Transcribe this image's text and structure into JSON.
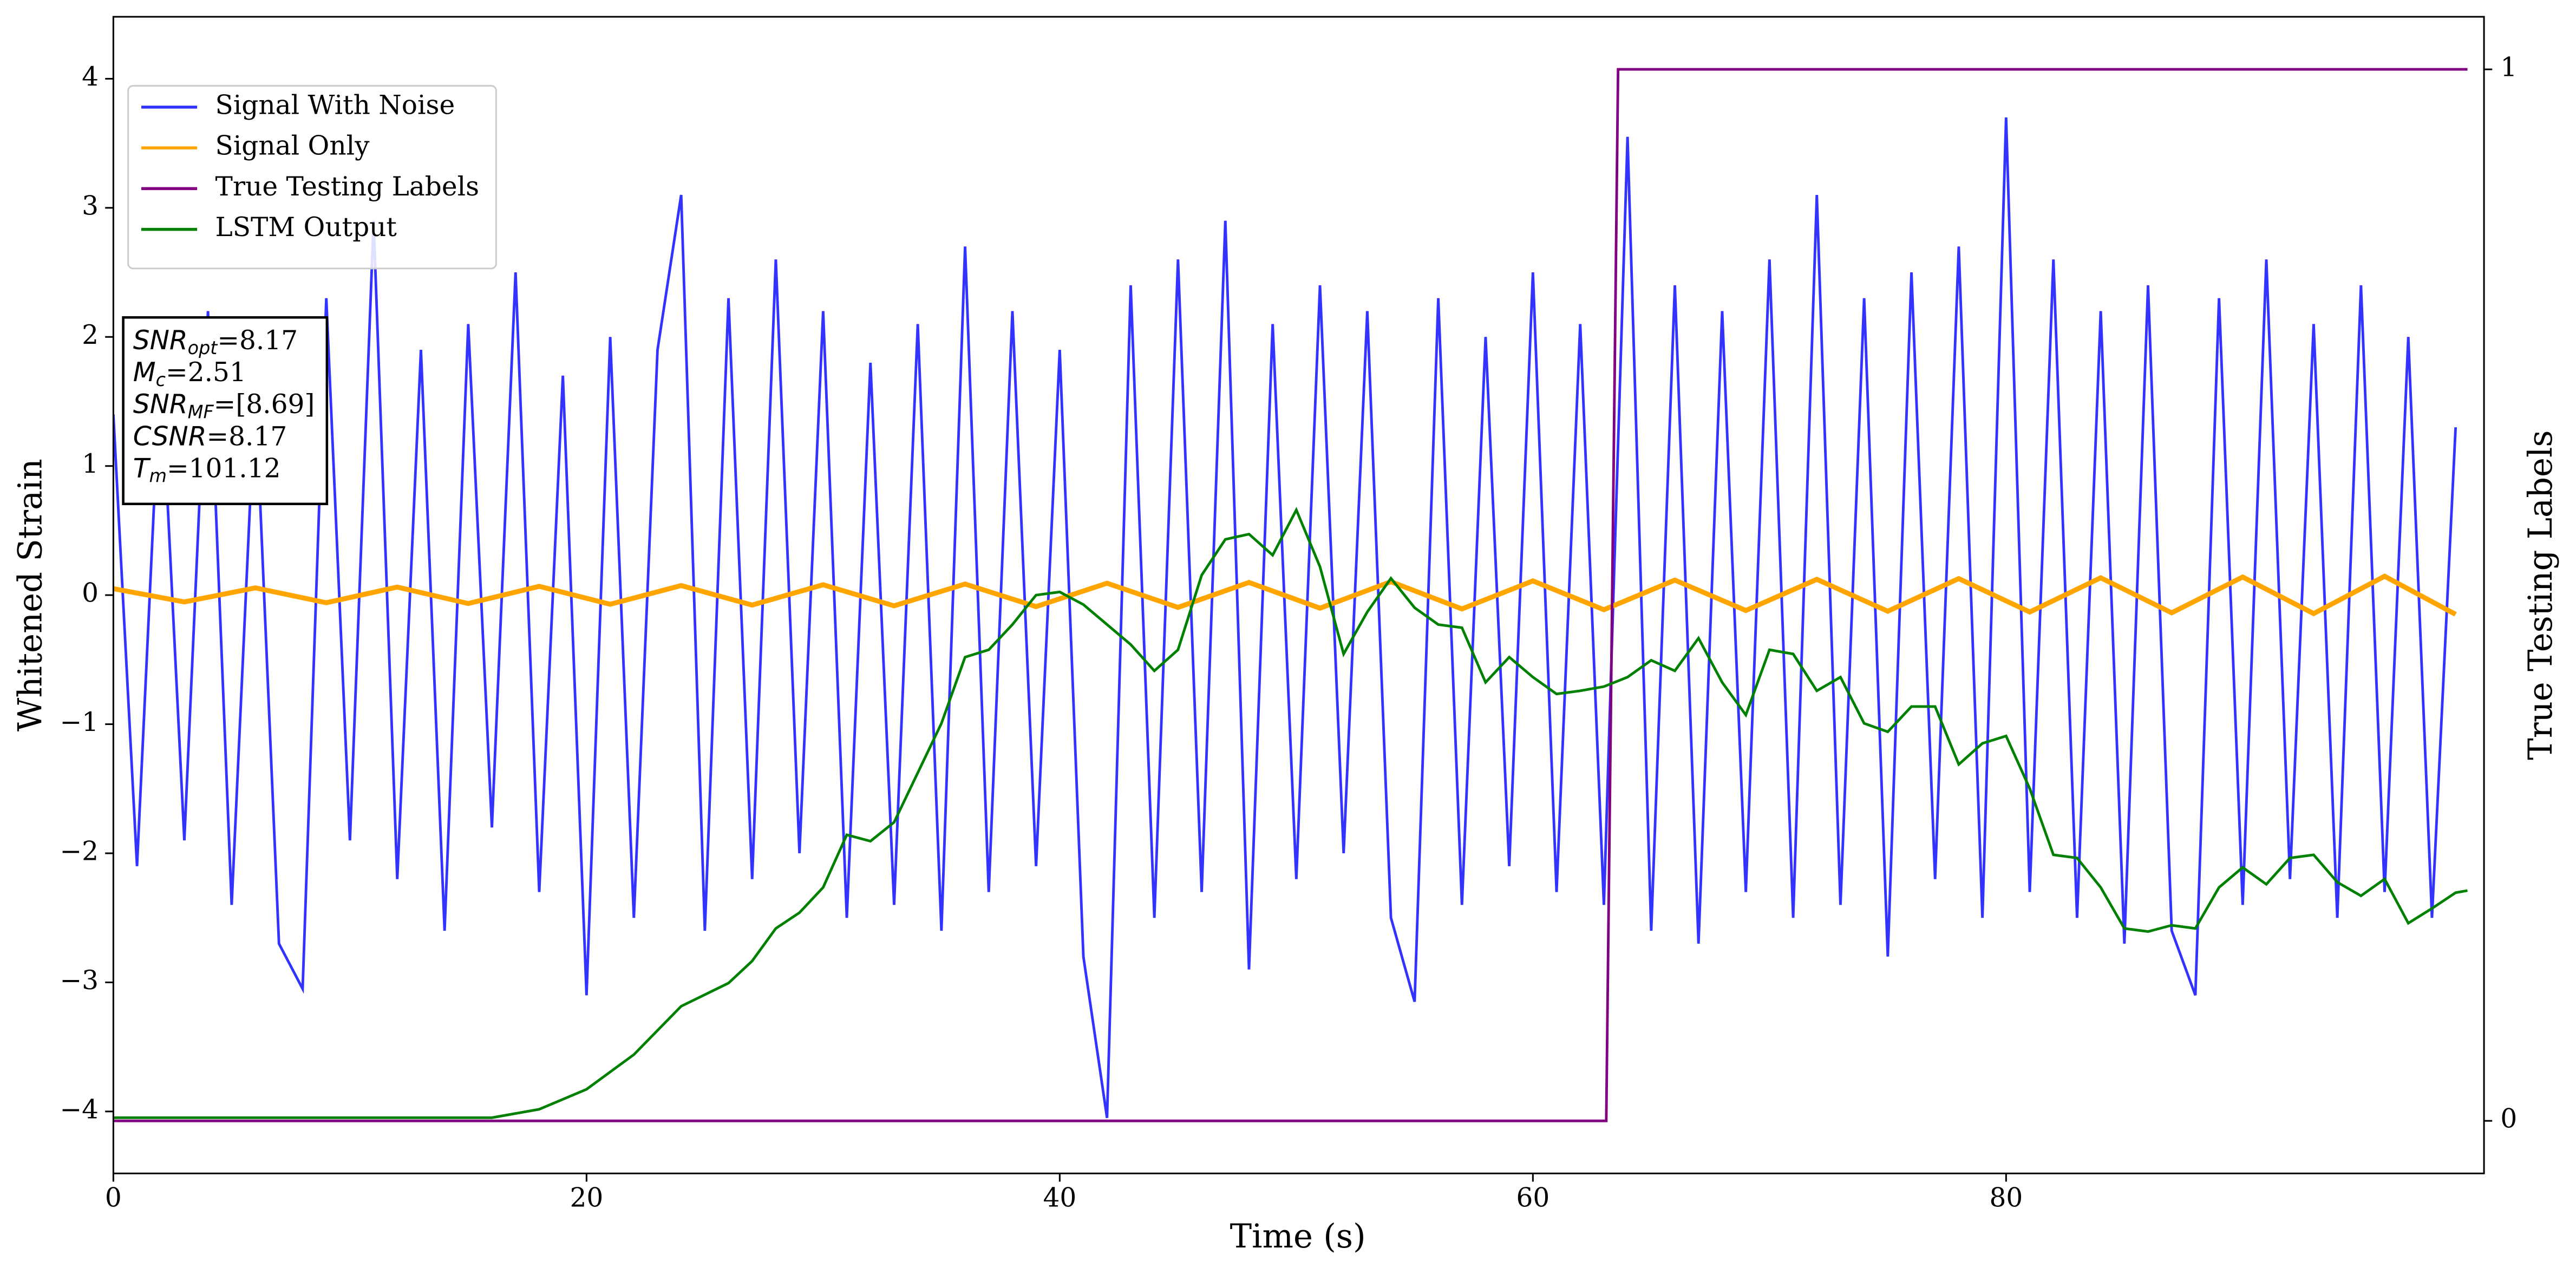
{
  "chart_data": {
    "type": "line",
    "xlabel": "Time (s)",
    "ylabel": "Whitened Strain",
    "y2label": "True Testing Labels",
    "xlim": [
      0,
      100.2
    ],
    "ylim": [
      -4.48,
      4.48
    ],
    "y2lim": [
      -0.05,
      1.05
    ],
    "xticks": [
      0,
      20,
      40,
      60,
      80
    ],
    "yticks": [
      {
        "value": -4,
        "label": "−4"
      },
      {
        "value": -3,
        "label": "−3"
      },
      {
        "value": -2,
        "label": "−2"
      },
      {
        "value": -1,
        "label": "−1"
      },
      0,
      1,
      2,
      3,
      4
    ],
    "y2ticks": [
      0,
      1
    ],
    "legend": "upper left",
    "annotation": [
      [
        "SNR",
        "opt",
        "=8.17"
      ],
      [
        "M",
        "c",
        "=2.51"
      ],
      [
        "SNR",
        "MF",
        "=[8.69]"
      ],
      [
        "CSNR",
        "",
        "=8.17"
      ],
      [
        "T",
        "m",
        "=101.12"
      ]
    ],
    "series": [
      {
        "name": "Signal With Noise",
        "color": "#3333ff",
        "x": [
          0,
          1,
          2,
          3,
          4,
          5,
          6,
          7,
          8,
          9,
          10,
          11,
          12,
          13,
          14,
          15,
          16,
          17,
          18,
          19,
          20,
          21,
          22,
          23,
          24,
          25,
          26,
          27,
          28,
          29,
          30,
          31,
          32,
          33,
          34,
          35,
          36,
          37,
          38,
          39,
          40,
          41,
          42,
          43,
          44,
          45,
          46,
          47,
          48,
          49,
          50,
          51,
          52,
          53,
          54,
          55,
          56,
          57,
          58,
          59,
          60,
          61,
          62,
          63,
          64,
          65,
          66,
          67,
          68,
          69,
          70,
          71,
          72,
          73,
          74,
          75,
          76,
          77,
          78,
          79,
          80,
          81,
          82,
          83,
          84,
          85,
          86,
          87,
          88,
          89,
          90,
          91,
          92,
          93,
          94,
          95,
          96,
          97,
          98,
          99
        ],
        "values": [
          1.4,
          -2.1,
          1.8,
          -1.9,
          2.2,
          -2.4,
          1.6,
          -2.7,
          -3.05,
          2.3,
          -1.9,
          2.9,
          -2.2,
          1.9,
          -2.6,
          2.1,
          -1.8,
          2.5,
          -2.3,
          1.7,
          -3.1,
          2.0,
          -2.5,
          1.9,
          3.1,
          -2.6,
          2.3,
          -2.2,
          2.6,
          -2.0,
          2.2,
          -2.5,
          1.8,
          -2.4,
          2.1,
          -2.6,
          2.7,
          -2.3,
          2.2,
          -2.1,
          1.9,
          -2.8,
          -4.05,
          2.4,
          -2.5,
          2.6,
          -2.3,
          2.9,
          -2.9,
          2.1,
          -2.2,
          2.4,
          -2.0,
          2.2,
          -2.5,
          -3.15,
          2.3,
          -2.4,
          2.0,
          -2.1,
          2.5,
          -2.3,
          2.1,
          -2.4,
          3.55,
          -2.6,
          2.4,
          -2.7,
          2.2,
          -2.3,
          2.6,
          -2.5,
          3.1,
          -2.4,
          2.3,
          -2.8,
          2.5,
          -2.2,
          2.7,
          -2.5,
          3.7,
          -2.3,
          2.6,
          -2.5,
          2.2,
          -2.7,
          2.4,
          -2.6,
          -3.1,
          2.3,
          -2.4,
          2.6,
          -2.2,
          2.1,
          -2.5,
          2.4,
          -2.3,
          2.0,
          -2.5,
          1.3
        ]
      },
      {
        "name": "Signal Only",
        "color": "#ffa500",
        "x": [
          0,
          3,
          6,
          9,
          12,
          15,
          18,
          21,
          24,
          27,
          30,
          33,
          36,
          39,
          42,
          45,
          48,
          51,
          54,
          57,
          60,
          63,
          66,
          69,
          72,
          75,
          78,
          81,
          84,
          87,
          90,
          93,
          96,
          99
        ],
        "values": [
          0.05,
          -0.053,
          0.056,
          -0.059,
          0.062,
          -0.065,
          0.068,
          -0.071,
          0.074,
          -0.077,
          0.08,
          -0.083,
          0.086,
          -0.089,
          0.092,
          -0.095,
          0.098,
          -0.101,
          0.104,
          -0.107,
          0.11,
          -0.113,
          0.116,
          -0.119,
          0.122,
          -0.125,
          0.128,
          -0.131,
          0.134,
          -0.137,
          0.14,
          -0.143,
          0.146,
          -0.149
        ]
      },
      {
        "name": "True Testing Labels",
        "color": "#800080",
        "axis": "y2",
        "x": [
          0,
          63.1,
          63.6,
          99.5
        ],
        "values": [
          0,
          0,
          1,
          1
        ]
      },
      {
        "name": "LSTM Output",
        "color": "#008000",
        "axis": "y2",
        "x": [
          0,
          16,
          18,
          20,
          22,
          24,
          26,
          27,
          28,
          29,
          30,
          31,
          32,
          33,
          34,
          35,
          36,
          37,
          38,
          39,
          40,
          41,
          42,
          43,
          44,
          45,
          46,
          47,
          48,
          49,
          50,
          51,
          52,
          53,
          54,
          55,
          56,
          57,
          58,
          59,
          60,
          61,
          62,
          63,
          64,
          65,
          66,
          67,
          68,
          69,
          70,
          71,
          72,
          73,
          74,
          75,
          76,
          77,
          78,
          79,
          80,
          81,
          82,
          83,
          84,
          85,
          86,
          87,
          88,
          89,
          90,
          91,
          92,
          93,
          94,
          95,
          96,
          97,
          98,
          99,
          99.5
        ],
        "values": [
          0.003,
          0.003,
          0.011,
          0.03,
          0.063,
          0.109,
          0.131,
          0.152,
          0.183,
          0.198,
          0.222,
          0.272,
          0.266,
          0.284,
          0.331,
          0.378,
          0.441,
          0.448,
          0.472,
          0.5,
          0.503,
          0.491,
          0.472,
          0.453,
          0.428,
          0.448,
          0.519,
          0.553,
          0.558,
          0.538,
          0.581,
          0.527,
          0.444,
          0.484,
          0.516,
          0.488,
          0.472,
          0.469,
          0.417,
          0.441,
          0.422,
          0.406,
          0.409,
          0.413,
          0.422,
          0.438,
          0.428,
          0.459,
          0.417,
          0.386,
          0.448,
          0.444,
          0.409,
          0.422,
          0.378,
          0.37,
          0.394,
          0.394,
          0.339,
          0.359,
          0.366,
          0.316,
          0.253,
          0.25,
          0.222,
          0.183,
          0.18,
          0.186,
          0.183,
          0.222,
          0.241,
          0.225,
          0.25,
          0.253,
          0.227,
          0.214,
          0.23,
          0.188,
          0.202,
          0.217,
          0.219
        ]
      }
    ]
  }
}
